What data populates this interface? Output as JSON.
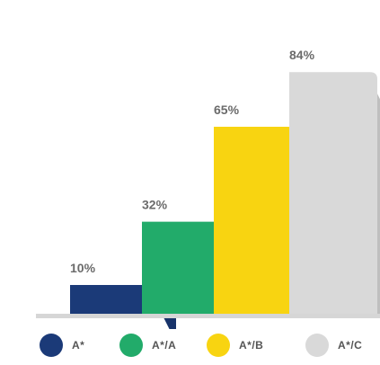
{
  "chart_data": {
    "type": "bar",
    "categories": [
      "A*",
      "A*/A",
      "A*/B",
      "A*/C"
    ],
    "values": [
      10,
      32,
      65,
      84
    ],
    "value_labels": [
      "10%",
      "32%",
      "65%",
      "84%"
    ],
    "ylim": [
      0,
      100
    ],
    "grid": false,
    "legend_position": "bottom",
    "colors": [
      "#1b3a78",
      "#22ab6a",
      "#f8d411",
      "#d9d9d9"
    ],
    "baseline_color": "#d6d6d6"
  }
}
